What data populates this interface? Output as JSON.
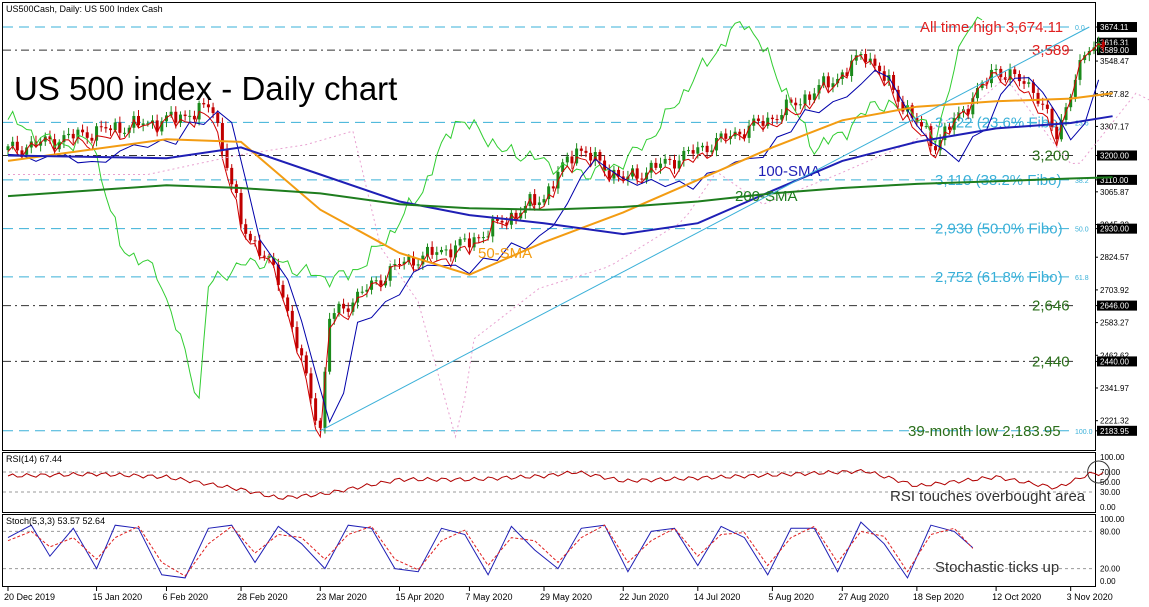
{
  "window_title": "US500Cash, Daily:  US 500 Index Cash",
  "big_title": "US 500 index - Daily chart",
  "colors": {
    "up": "#1b8a1b",
    "down": "#c00000",
    "sma50": "#f39c12",
    "sma100": "#1f1fb5",
    "sma200": "#1e7d1e",
    "fibo": "#3ab0d8",
    "level": "#333333",
    "rsi": "#b00000",
    "stoch_main": "#1f1fb5",
    "stoch_signal": "#e02020",
    "chikou": "#32cd32",
    "tenkan": "#d00000",
    "kijun": "#0000aa"
  },
  "chart_data": [
    {
      "type": "line",
      "title": "US 500 index - Daily chart",
      "instrument": "US500Cash",
      "y_ticks": [
        "3674.11",
        "3616.31",
        "3589.00",
        "3548.47",
        "3427.82",
        "3307.17",
        "3200.00",
        "3110.00",
        "3065.87",
        "2945.22",
        "2930.00",
        "2824.57",
        "2703.92",
        "2646.00",
        "2583.27",
        "2462.62",
        "2440.00",
        "2341.97",
        "2221.32",
        "2183.95"
      ],
      "x_ticks": [
        "20 Dec 2019",
        "15 Jan 2020",
        "6 Feb 2020",
        "28 Feb 2020",
        "23 Mar 2020",
        "15 Apr 2020",
        "7 May 2020",
        "29 May 2020",
        "22 Jun 2020",
        "14 Jul 2020",
        "5 Aug 2020",
        "27 Aug 2020",
        "18 Sep 2020",
        "12 Oct 2020",
        "3 Nov 2020"
      ],
      "ylim": [
        2150,
        3700
      ],
      "levels": [
        {
          "value": 3674.11,
          "label": "All time high 3,674.11",
          "kind": "ath",
          "tag": "0.0"
        },
        {
          "value": 3589,
          "label": "3,589",
          "kind": "resistance"
        },
        {
          "value": 3322,
          "label": "3,322 (23.6% Fibo)",
          "kind": "fibo",
          "tag": "23.6"
        },
        {
          "value": 3200,
          "label": "3,200",
          "kind": "support"
        },
        {
          "value": 3110,
          "label": "3,110 (38.2% Fibo)",
          "kind": "fibo",
          "tag": "38.2"
        },
        {
          "value": 2930,
          "label": "2,930 (50.0% Fibo)",
          "kind": "fibo",
          "tag": "50.0"
        },
        {
          "value": 2752,
          "label": "2,752 (61.8% Fibo)",
          "kind": "fibo",
          "tag": "61.8"
        },
        {
          "value": 2646,
          "label": "2,646",
          "kind": "support"
        },
        {
          "value": 2440,
          "label": "2,440",
          "kind": "support"
        },
        {
          "value": 2183.95,
          "label": "39-month low 2,183.95",
          "kind": "low",
          "tag": "100.0"
        }
      ],
      "price_path": [
        [
          "20 Dec 2019",
          3220
        ],
        [
          "15 Jan 2020",
          3290
        ],
        [
          "6 Feb 2020",
          3330
        ],
        [
          "19 Feb 2020",
          3380
        ],
        [
          "28 Feb 2020",
          2950
        ],
        [
          "10 Mar 2020",
          2750
        ],
        [
          "23 Mar 2020",
          2190
        ],
        [
          "26 Mar 2020",
          2600
        ],
        [
          "15 Apr 2020",
          2800
        ],
        [
          "7 May 2020",
          2880
        ],
        [
          "29 May 2020",
          3050
        ],
        [
          "8 Jun 2020",
          3230
        ],
        [
          "22 Jun 2020",
          3110
        ],
        [
          "14 Jul 2020",
          3220
        ],
        [
          "5 Aug 2020",
          3340
        ],
        [
          "27 Aug 2020",
          3500
        ],
        [
          "2 Sep 2020",
          3580
        ],
        [
          "18 Sep 2020",
          3320
        ],
        [
          "24 Sep 2020",
          3240
        ],
        [
          "12 Oct 2020",
          3520
        ],
        [
          "23 Oct 2020",
          3450
        ],
        [
          "30 Oct 2020",
          3270
        ],
        [
          "3 Nov 2020",
          3440
        ],
        [
          "9 Nov 2020",
          3600
        ],
        [
          "13 Nov 2020",
          3620
        ]
      ],
      "series": [
        {
          "name": "50-SMA",
          "values": [
            [
              "20 Dec 2019",
              3180
            ],
            [
              "6 Feb 2020",
              3260
            ],
            [
              "28 Feb 2020",
              3250
            ],
            [
              "23 Mar 2020",
              3000
            ],
            [
              "15 Apr 2020",
              2840
            ],
            [
              "7 May 2020",
              2760
            ],
            [
              "29 May 2020",
              2880
            ],
            [
              "22 Jun 2020",
              2990
            ],
            [
              "14 Jul 2020",
              3110
            ],
            [
              "5 Aug 2020",
              3230
            ],
            [
              "27 Aug 2020",
              3330
            ],
            [
              "18 Sep 2020",
              3380
            ],
            [
              "12 Oct 2020",
              3400
            ],
            [
              "3 Nov 2020",
              3410
            ],
            [
              "16 Nov 2020",
              3430
            ]
          ]
        },
        {
          "name": "100-SMA",
          "values": [
            [
              "20 Dec 2019",
              3200
            ],
            [
              "6 Feb 2020",
              3190
            ],
            [
              "28 Feb 2020",
              3230
            ],
            [
              "23 Mar 2020",
              3130
            ],
            [
              "15 Apr 2020",
              3030
            ],
            [
              "7 May 2020",
              2980
            ],
            [
              "29 May 2020",
              2950
            ],
            [
              "22 Jun 2020",
              2910
            ],
            [
              "14 Jul 2020",
              2950
            ],
            [
              "5 Aug 2020",
              3070
            ],
            [
              "27 Aug 2020",
              3180
            ],
            [
              "18 Sep 2020",
              3250
            ],
            [
              "12 Oct 2020",
              3300
            ],
            [
              "3 Nov 2020",
              3320
            ],
            [
              "16 Nov 2020",
              3345
            ]
          ]
        },
        {
          "name": "200-SMA",
          "values": [
            [
              "20 Dec 2019",
              3050
            ],
            [
              "6 Feb 2020",
              3090
            ],
            [
              "28 Feb 2020",
              3080
            ],
            [
              "23 Mar 2020",
              3060
            ],
            [
              "15 Apr 2020",
              3020
            ],
            [
              "7 May 2020",
              3005
            ],
            [
              "29 May 2020",
              3000
            ],
            [
              "22 Jun 2020",
              3010
            ],
            [
              "14 Jul 2020",
              3030
            ],
            [
              "5 Aug 2020",
              3060
            ],
            [
              "27 Aug 2020",
              3080
            ],
            [
              "18 Sep 2020",
              3095
            ],
            [
              "12 Oct 2020",
              3105
            ],
            [
              "3 Nov 2020",
              3115
            ],
            [
              "16 Nov 2020",
              3120
            ]
          ]
        }
      ],
      "trendline": [
        [
          "23 Mar 2020",
          2183.95
        ],
        [
          "9 Nov 2020",
          3674.11
        ]
      ]
    },
    {
      "type": "line",
      "title": "RSI(14) 67.44",
      "y_ticks": [
        "100.00",
        "70.00",
        "50.00",
        "30.00",
        "0.00"
      ],
      "ylim": [
        0,
        100
      ],
      "values": [
        [
          "20 Dec 2019",
          62
        ],
        [
          "15 Jan 2020",
          66
        ],
        [
          "6 Feb 2020",
          60
        ],
        [
          "28 Feb 2020",
          35
        ],
        [
          "10 Mar 2020",
          18
        ],
        [
          "23 Mar 2020",
          25
        ],
        [
          "15 Apr 2020",
          55
        ],
        [
          "7 May 2020",
          55
        ],
        [
          "29 May 2020",
          62
        ],
        [
          "8 Jun 2020",
          70
        ],
        [
          "22 Jun 2020",
          52
        ],
        [
          "14 Jul 2020",
          58
        ],
        [
          "5 Aug 2020",
          64
        ],
        [
          "27 Aug 2020",
          70
        ],
        [
          "2 Sep 2020",
          72
        ],
        [
          "18 Sep 2020",
          42
        ],
        [
          "12 Oct 2020",
          60
        ],
        [
          "30 Oct 2020",
          38
        ],
        [
          "9 Nov 2020",
          66
        ],
        [
          "13 Nov 2020",
          67.44
        ]
      ],
      "annotation": "RSI touches overbought area"
    },
    {
      "type": "line",
      "title": "Stoch(5,3,3) 53.57 52.64",
      "y_ticks": [
        "100.00",
        "80.00",
        "20.00",
        "0.00"
      ],
      "ylim": [
        0,
        100
      ],
      "series": [
        {
          "name": "main",
          "values": [
            [
              0,
              70
            ],
            [
              5,
              90
            ],
            [
              9,
              40
            ],
            [
              14,
              85
            ],
            [
              19,
              20
            ],
            [
              23,
              90
            ],
            [
              28,
              85
            ],
            [
              33,
              10
            ],
            [
              38,
              5
            ],
            [
              43,
              85
            ],
            [
              48,
              90
            ],
            [
              53,
              30
            ],
            [
              58,
              88
            ],
            [
              63,
              60
            ],
            [
              68,
              20
            ],
            [
              73,
              90
            ],
            [
              78,
              85
            ],
            [
              83,
              20
            ],
            [
              88,
              15
            ],
            [
              93,
              85
            ],
            [
              98,
              75
            ],
            [
              103,
              10
            ],
            [
              108,
              88
            ],
            [
              113,
              50
            ],
            [
              118,
              20
            ],
            [
              123,
              85
            ],
            [
              128,
              90
            ],
            [
              133,
              15
            ],
            [
              138,
              80
            ],
            [
              143,
              85
            ],
            [
              148,
              25
            ],
            [
              153,
              88
            ],
            [
              158,
              70
            ],
            [
              163,
              10
            ],
            [
              168,
              85
            ],
            [
              173,
              85
            ],
            [
              178,
              15
            ],
            [
              183,
              95
            ],
            [
              188,
              60
            ],
            [
              193,
              5
            ],
            [
              198,
              90
            ],
            [
              203,
              80
            ],
            [
              207,
              53.57
            ]
          ]
        },
        {
          "name": "signal",
          "values": [
            [
              0,
              65
            ],
            [
              5,
              80
            ],
            [
              9,
              55
            ],
            [
              14,
              70
            ],
            [
              19,
              35
            ],
            [
              23,
              70
            ],
            [
              28,
              88
            ],
            [
              33,
              30
            ],
            [
              38,
              8
            ],
            [
              43,
              60
            ],
            [
              48,
              88
            ],
            [
              53,
              45
            ],
            [
              58,
              75
            ],
            [
              63,
              70
            ],
            [
              68,
              35
            ],
            [
              73,
              75
            ],
            [
              78,
              88
            ],
            [
              83,
              35
            ],
            [
              88,
              18
            ],
            [
              93,
              65
            ],
            [
              98,
              82
            ],
            [
              103,
              25
            ],
            [
              108,
              70
            ],
            [
              113,
              65
            ],
            [
              118,
              30
            ],
            [
              123,
              70
            ],
            [
              128,
              90
            ],
            [
              133,
              30
            ],
            [
              138,
              65
            ],
            [
              143,
              85
            ],
            [
              148,
              40
            ],
            [
              153,
              75
            ],
            [
              158,
              78
            ],
            [
              163,
              25
            ],
            [
              168,
              70
            ],
            [
              173,
              88
            ],
            [
              178,
              30
            ],
            [
              183,
              80
            ],
            [
              188,
              72
            ],
            [
              193,
              15
            ],
            [
              198,
              75
            ],
            [
              203,
              85
            ],
            [
              207,
              52.64
            ]
          ]
        }
      ],
      "annotation": "Stochastic ticks up"
    }
  ]
}
